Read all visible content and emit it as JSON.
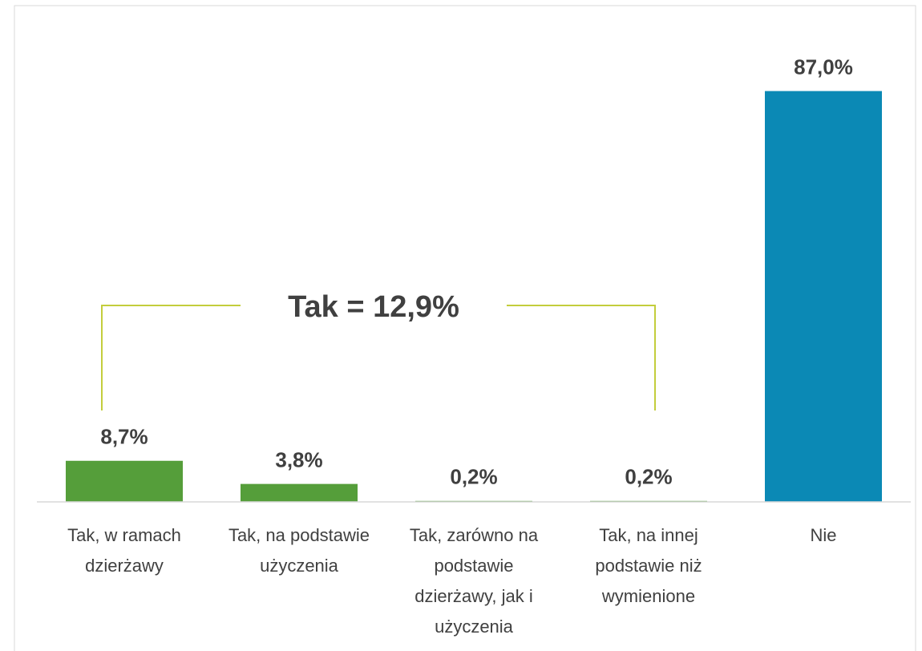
{
  "chart_data": {
    "type": "bar",
    "categories": [
      "Tak, w ramach dzierżawy",
      "Tak, na podstawie użyczenia",
      "Tak, zarówno na podstawie dzierżawy, jak i użyczenia",
      "Tak, na innej podstawie niż wymienione",
      "Nie"
    ],
    "values": [
      8.7,
      3.8,
      0.2,
      0.2,
      87.0
    ],
    "value_labels": [
      "8,7%",
      "3,8%",
      "0,2%",
      "0,2%",
      "87,0%"
    ],
    "colors": [
      "#559e3a",
      "#559e3a",
      "#559e3a",
      "#559e3a",
      "#0b89b5"
    ],
    "ylim": [
      0,
      100
    ],
    "annotation": "Tak = 12,9%"
  }
}
